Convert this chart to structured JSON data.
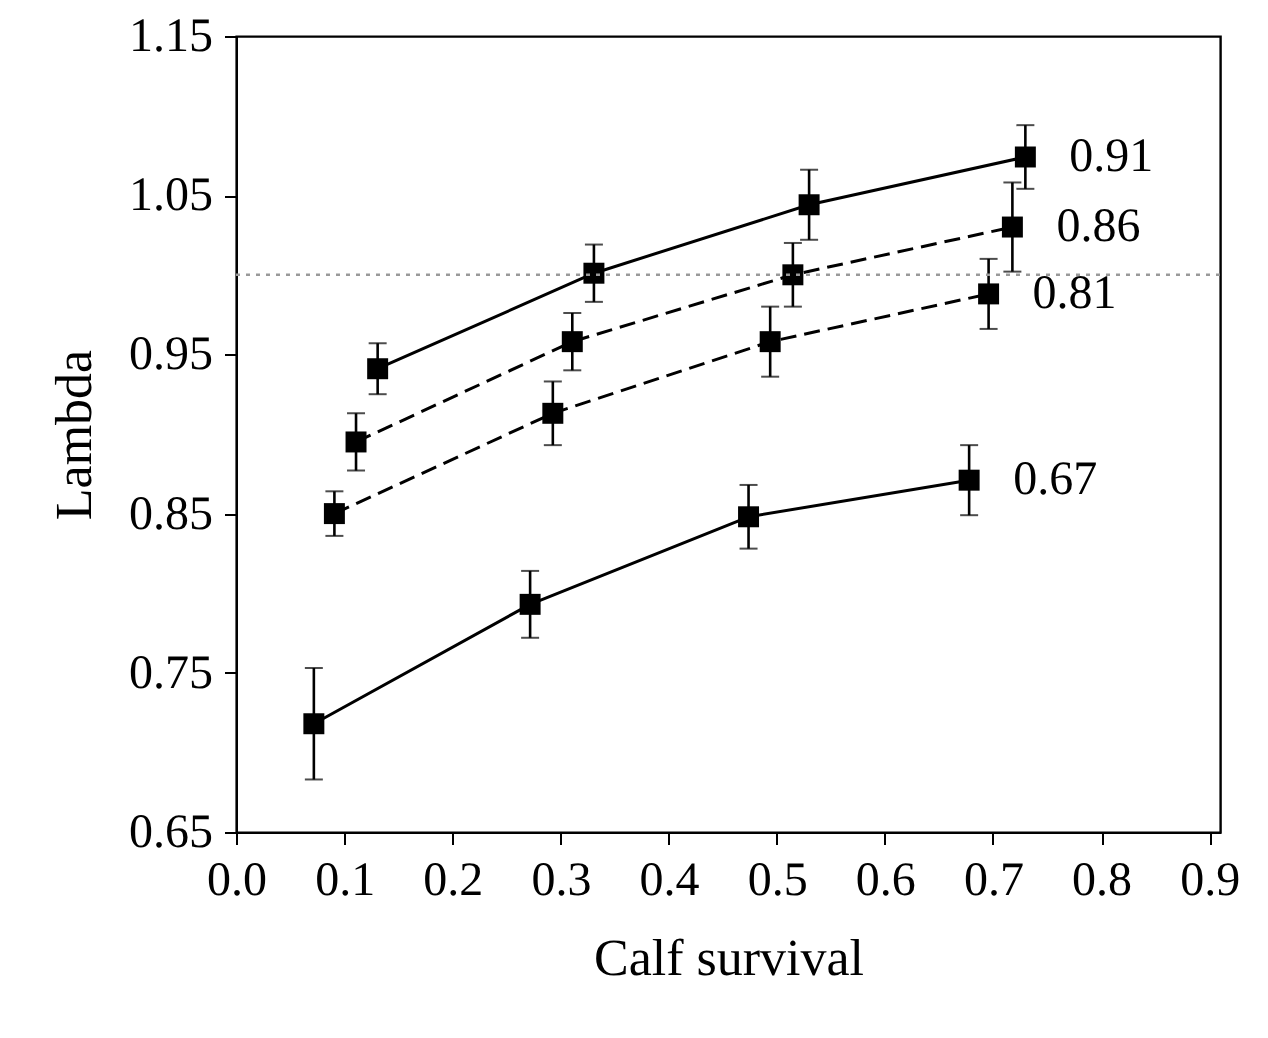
{
  "chart_data": {
    "type": "line",
    "xlabel": "Calf survival",
    "ylabel": "Lambda",
    "xlim": [
      0,
      0.91
    ],
    "ylim": [
      0.65,
      1.15
    ],
    "xticks": [
      "0.0",
      0.1,
      0.2,
      0.3,
      0.4,
      0.5,
      0.6,
      0.7,
      0.8,
      0.9
    ],
    "yticks": [
      0.65,
      0.75,
      0.85,
      0.95,
      1.05,
      1.15
    ],
    "marker": "square",
    "ref_lines": [
      {
        "axis": "y",
        "value": 1.0,
        "line_style": "dotted",
        "color": "#999999"
      }
    ],
    "series": [
      {
        "name": "0.91",
        "color": "#000000",
        "line_style": "solid",
        "x": [
          0.131,
          0.331,
          0.53,
          0.73
        ],
        "values": [
          0.941,
          1.001,
          1.044,
          1.074
        ],
        "errors": [
          0.016,
          0.018,
          0.022,
          0.02
        ]
      },
      {
        "name": "0.86",
        "color": "#000000",
        "line_style": "dashed",
        "x": [
          0.111,
          0.311,
          0.515,
          0.718
        ],
        "values": [
          0.895,
          0.958,
          1.0,
          1.03
        ],
        "errors": [
          0.018,
          0.018,
          0.02,
          0.028
        ]
      },
      {
        "name": "0.81",
        "color": "#000000",
        "line_style": "dashed",
        "x": [
          0.091,
          0.293,
          0.494,
          0.696
        ],
        "values": [
          0.85,
          0.913,
          0.958,
          0.988
        ],
        "errors": [
          0.014,
          0.02,
          0.022,
          0.022
        ]
      },
      {
        "name": "0.67",
        "color": "#000000",
        "line_style": "solid",
        "x": [
          0.072,
          0.272,
          0.474,
          0.678
        ],
        "values": [
          0.718,
          0.793,
          0.848,
          0.871
        ],
        "errors": [
          0.035,
          0.021,
          0.02,
          0.022
        ]
      }
    ]
  }
}
